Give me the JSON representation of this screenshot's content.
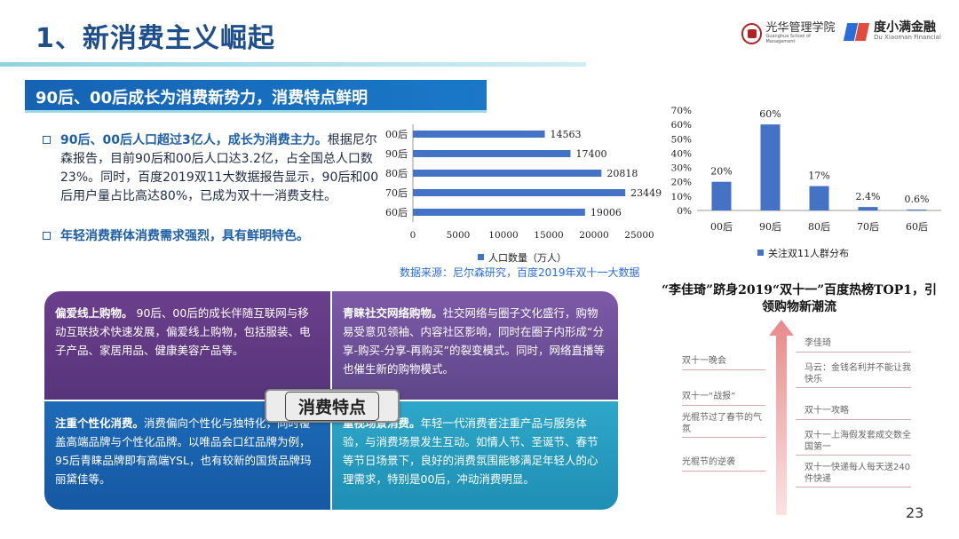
{
  "header": {
    "title": "1、新消费主义崛起",
    "logo1_name": "光华管理学院",
    "logo1_sub": "Guanghua School of Management",
    "logo2_name": "度小满金融",
    "logo2_sub": "Du Xiaoman Financial"
  },
  "subtitle": "90后、00后成长为消费新势力，消费特点鲜明",
  "bullets": {
    "b1_head": "90后、00后人口超过3亿人，成长为消费主力。",
    "b1_body": "根据尼尔森报告，目前90后和00后人口达3.2亿，占全国总人口数23%。同时，百度2019双11大数据报告显示，90后和00后用户量占比高达80%，已成为双十一消费支柱。",
    "b2_head": "年轻消费群体消费需求强烈，具有鲜明特色。"
  },
  "chart_data": [
    {
      "type": "bar",
      "orientation": "horizontal",
      "categories": [
        "00后",
        "90后",
        "80后",
        "70后",
        "60后"
      ],
      "series": [
        {
          "name": "人口数量（万人）",
          "values": [
            14563,
            17400,
            20818,
            23449,
            19006
          ]
        }
      ],
      "xlim": [
        0,
        25000
      ],
      "xticks": [
        "0",
        "5000",
        "10000",
        "15000",
        "20000",
        "25000"
      ],
      "legend": "bottom",
      "color": "#4472c4"
    },
    {
      "type": "bar",
      "categories": [
        "00后",
        "90后",
        "80后",
        "70后",
        "60后"
      ],
      "series": [
        {
          "name": "关注双11人群分布",
          "values": [
            20,
            60,
            17,
            2.4,
            0.6
          ]
        }
      ],
      "labels": [
        "20%",
        "60%",
        "17%",
        "2.4%",
        "0.6%"
      ],
      "ylim": [
        0,
        70
      ],
      "yticks": [
        "0%",
        "10%",
        "20%",
        "30%",
        "40%",
        "50%",
        "60%",
        "70%"
      ],
      "legend": "bottom",
      "color": "#4472c4"
    }
  ],
  "source": "数据来源：尼尔森研究，百度2019年双十一大数据",
  "quadrants": {
    "q1_head": "偏爱线上购物。",
    "q1_body": "90后、00后的成长伴随互联网与移动互联技术快速发展，偏爱线上购物，包括服装、电子产品、家居用品、健康美容产品等。",
    "q2_head": "青睐社交网络购物。",
    "q2_body": "社交网络与圈子文化盛行，购物易受意见领袖、内容社区影响，同时在圈子内形成“分享-购买-分享-再购买”的裂变模式。同时，网络直播等也催生新的购物模式。",
    "q3_head": "注重个性化消费。",
    "q3_body": "消费偏向个性化与独特化，同时覆盖高端品牌与个性化品牌。以唯品会口红品牌为例，95后青睐品牌即有高端YSL，也有较新的国货品牌玛丽黛佳等。",
    "q4_head": "重视场景消费。",
    "q4_body": "年轻一代消费者注重产品与服务体验，与消费场景发生互动。如情人节、圣诞节、春节等节日场景下，良好的消费氛围能够满足年轻人的心理需求，特别是00后，冲动消费明显。",
    "center": "消费特点"
  },
  "timeline": {
    "title": "“李佳琦”跻身2019“双十一”百度热榜TOP1，引领购物新潮流",
    "left_items": [
      "双十一晚会",
      "双十一“战报”",
      "光棍节过了春节的气氛",
      "光棍节的逆袭"
    ],
    "right_items": [
      "李佳琦",
      "马云：金钱名利并不能让我快乐",
      "双十一攻略",
      "双十一上海假发套成交数全国第一",
      "双十一快递每人每天送240件快递"
    ]
  },
  "page_number": "23"
}
